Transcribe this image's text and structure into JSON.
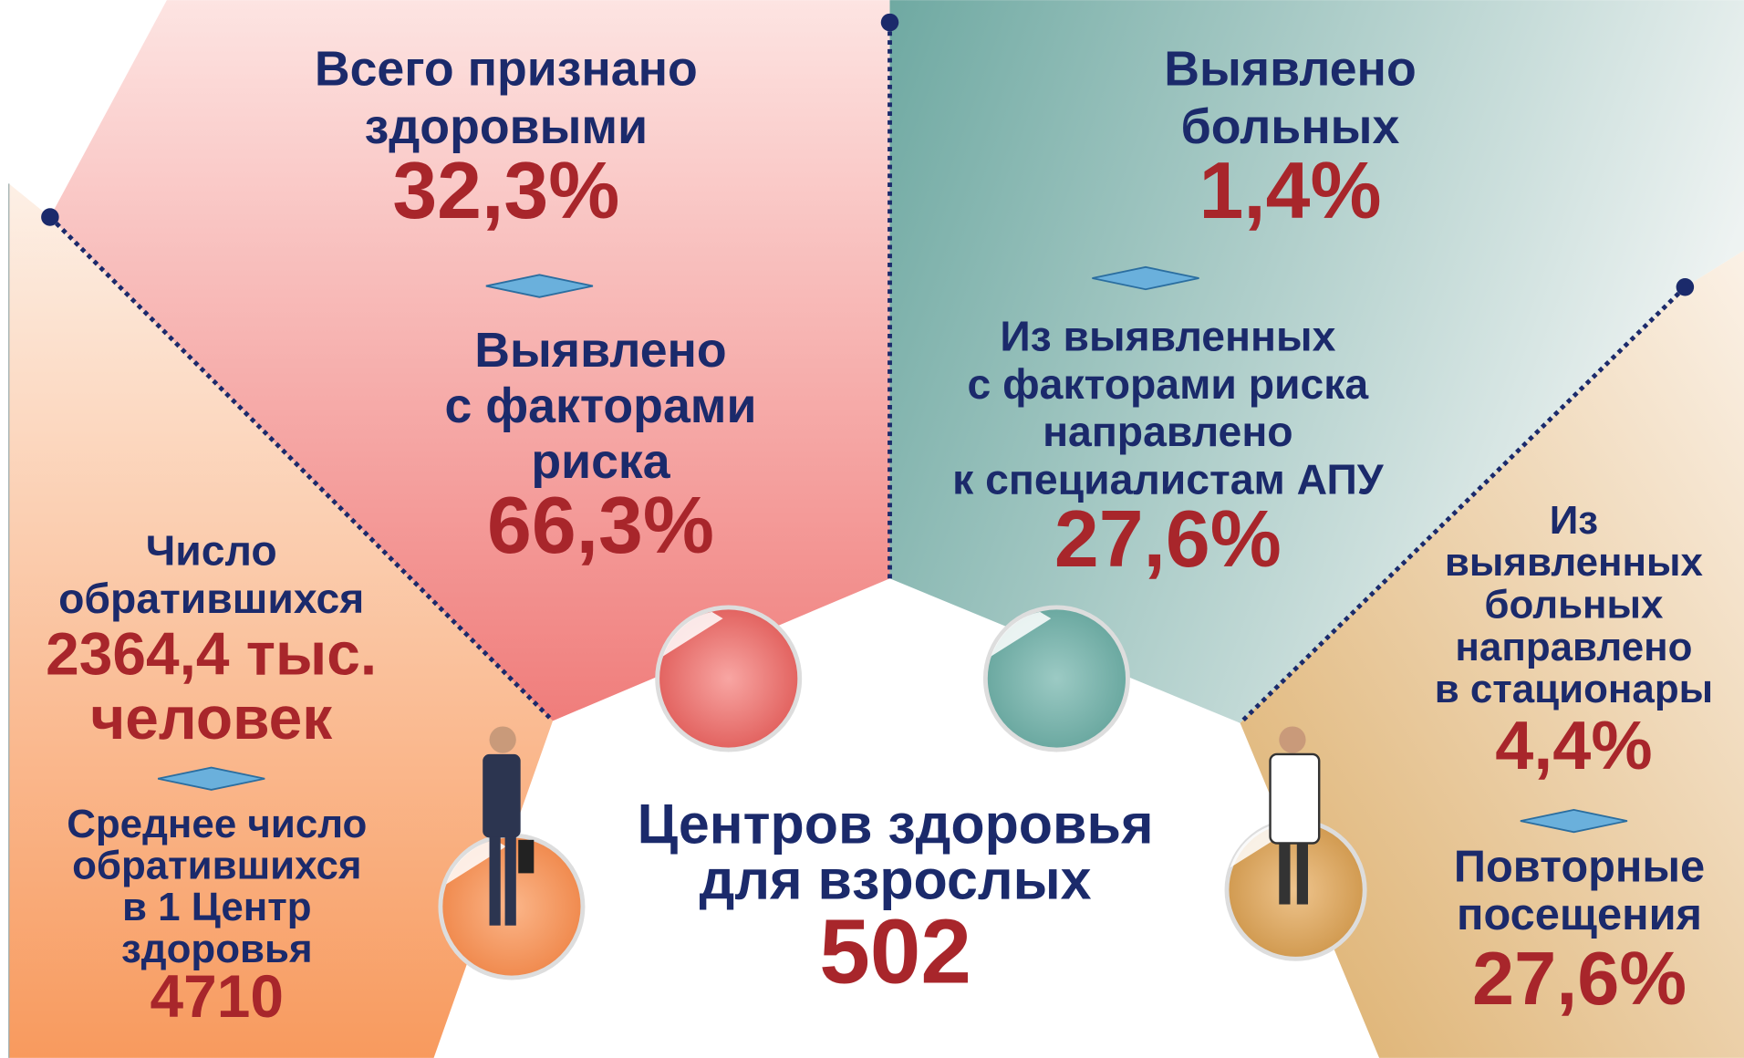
{
  "blocks": [
    {
      "label": [
        "Всего признано",
        "здоровыми"
      ],
      "value": [
        "32,3%"
      ]
    },
    {
      "label": [
        "Выявлено",
        "с факторами",
        "риска"
      ],
      "value": [
        "66,3%"
      ]
    },
    {
      "label": [
        "Выявлено",
        "больных"
      ],
      "value": [
        "1,4%"
      ]
    },
    {
      "label": [
        "Из выявленных",
        "с факторами риска",
        "направлено",
        "к специалистам АПУ"
      ],
      "value": [
        "27,6%"
      ]
    },
    {
      "label": [
        "Число",
        "обратившихся"
      ],
      "value": [
        "2364,4 тыс.",
        "человек"
      ]
    },
    {
      "label": [
        "Среднее число",
        "обратившихся",
        "в 1 Центр",
        "здоровья"
      ],
      "value": [
        "4710"
      ]
    },
    {
      "label": [
        "Из",
        "выявленных",
        "больных",
        "направлено",
        "в стационары"
      ],
      "value": [
        "4,4%"
      ]
    },
    {
      "label": [
        "Повторные",
        "посещения"
      ],
      "value": [
        "27,6%"
      ]
    },
    {
      "label": [
        "Центров здоровья",
        "для взрослых"
      ],
      "value": [
        "502"
      ]
    }
  ]
}
